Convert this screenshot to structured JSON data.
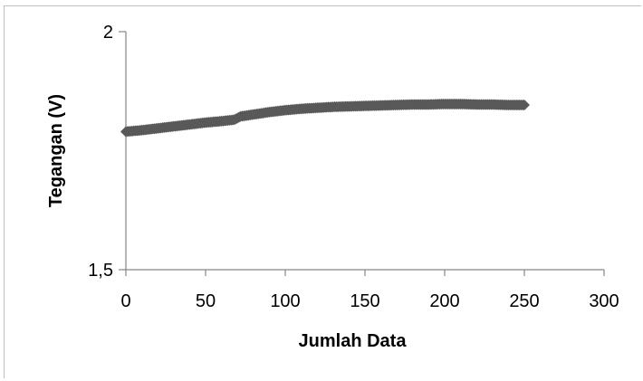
{
  "chart_data": {
    "type": "scatter",
    "title": "",
    "xlabel": "Jumlah Data",
    "ylabel": "Tegangan (V)",
    "xlim": [
      0,
      300
    ],
    "ylim": [
      1.5,
      2
    ],
    "x_ticks": [
      0,
      50,
      100,
      150,
      200,
      250,
      300
    ],
    "x_tick_labels": [
      "0",
      "50",
      "100",
      "150",
      "200",
      "250",
      "300"
    ],
    "y_ticks": [
      1.5,
      2
    ],
    "y_tick_labels": [
      "1,5",
      "2"
    ],
    "grid": false,
    "legend": "none",
    "colors": {
      "marker": "#595959",
      "axis": "#868686"
    },
    "series": [
      {
        "x": [
          0,
          10,
          20,
          30,
          40,
          50,
          60,
          68,
          72,
          80,
          90,
          100,
          110,
          120,
          130,
          140,
          150,
          160,
          170,
          180,
          190,
          200,
          210,
          220,
          230,
          240,
          250
        ],
        "y": [
          1.79,
          1.793,
          1.797,
          1.801,
          1.805,
          1.809,
          1.812,
          1.815,
          1.822,
          1.826,
          1.831,
          1.835,
          1.838,
          1.84,
          1.842,
          1.843,
          1.844,
          1.845,
          1.846,
          1.847,
          1.847,
          1.848,
          1.848,
          1.847,
          1.847,
          1.846,
          1.846
        ]
      }
    ]
  }
}
